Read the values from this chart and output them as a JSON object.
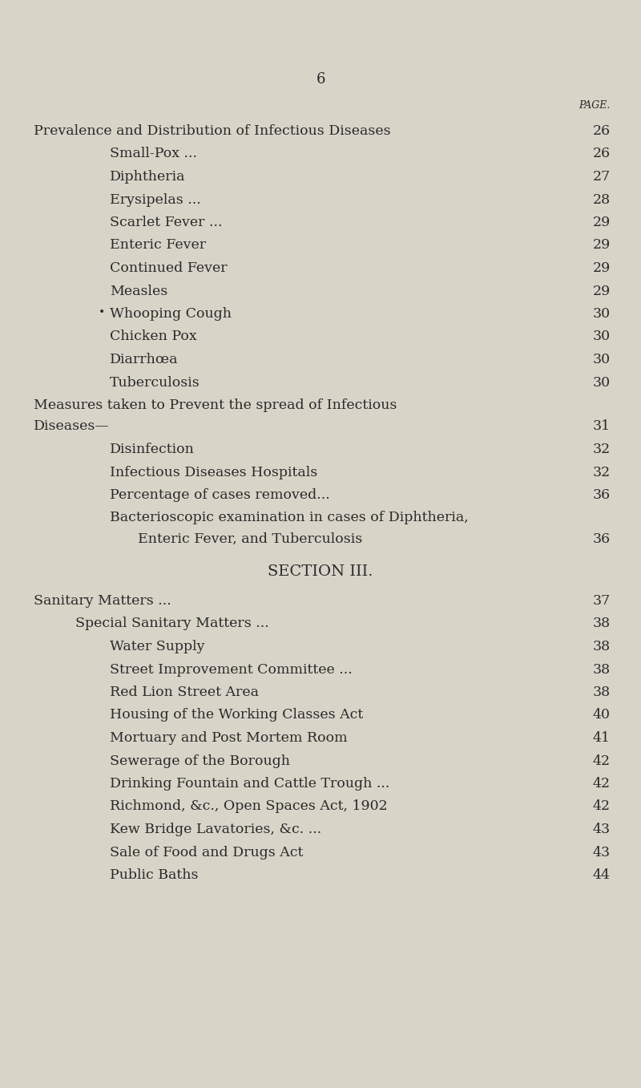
{
  "background_color": "#d8d4c8",
  "page_number": "6",
  "page_label": "PAGE.",
  "text_color": "#2a2a2a",
  "entries": [
    {
      "level": 0,
      "text": "Prevalence and Distribution of Infectious Diseases",
      "dots": "...",
      "page": "26",
      "italic_caps": true
    },
    {
      "level": 1,
      "text": "Small-Pox ...",
      "dots": "...          ...          ...          ...",
      "page": "26",
      "italic_caps": false
    },
    {
      "level": 1,
      "text": "Diphtheria",
      "dots": "...     ...     ...     ...     ...",
      "page": "27",
      "italic_caps": false
    },
    {
      "level": 1,
      "text": "Erysipelas ...",
      "dots": "...          ...          ...          ...",
      "page": "28",
      "italic_caps": false
    },
    {
      "level": 1,
      "text": "Scarlet Fever ...",
      "dots": "...          ....         ....          ...",
      "page": "29",
      "italic_caps": false
    },
    {
      "level": 1,
      "text": "Enteric Fever",
      "dots": "...     ...       ..     ...",
      "page": "29",
      "italic_caps": false
    },
    {
      "level": 1,
      "text": "Continued Fever",
      "dots": "...          ...          ...          ...",
      "page": "29",
      "italic_caps": false
    },
    {
      "level": 1,
      "text": "Measles",
      "dots": "...          ...          ...          ...          ...",
      "page": "29",
      "italic_caps": false
    },
    {
      "level": 1,
      "text": "Whooping Cough",
      "dots": "...          ...          ...          ...",
      "page": "30",
      "italic_caps": false,
      "bullet": true
    },
    {
      "level": 1,
      "text": "Chicken Pox",
      "dots": "...     ...          ...          ...",
      "page": "30",
      "italic_caps": false
    },
    {
      "level": 1,
      "text": "Diarrhœa",
      "dots": "...          ...          ...          ...   ...",
      "page": "30",
      "italic_caps": false
    },
    {
      "level": 1,
      "text": "Tuberculosis",
      "dots": "...          ...          ...          ...",
      "page": "30",
      "italic_caps": false
    },
    {
      "level": 0,
      "text": "Measures taken to Prevent the spread of Infectious",
      "dots": "",
      "page": "",
      "italic_caps": true,
      "no_page": true
    },
    {
      "level": 0,
      "text": "Diseases—",
      "dots": "...          ...          ...          ...          ...",
      "page": "31",
      "italic_caps": true
    },
    {
      "level": 1,
      "text": "Disinfection",
      "dots": "...          ...          ...          ...",
      "page": "32",
      "italic_caps": false
    },
    {
      "level": 1,
      "text": "Infectious Diseases Hospitals",
      "dots": "...          ...          ...",
      "page": "32",
      "italic_caps": false
    },
    {
      "level": 1,
      "text": "Percentage of cases removed...",
      "dots": "..          ...",
      "page": "36",
      "italic_caps": false
    },
    {
      "level": 1,
      "text": "Bacterioscopic examination in cases of Diphtheria,",
      "dots": "",
      "page": "",
      "italic_caps": false,
      "no_page": true
    },
    {
      "level": 2,
      "text": "Enteric Fever, and Tuberculosis",
      "dots": "...          ..",
      "page": "36",
      "italic_caps": false
    },
    {
      "level": -1,
      "text": "SECTION III.",
      "dots": "",
      "page": "",
      "italic_caps": false,
      "center": true,
      "section": true
    },
    {
      "level": 0,
      "text": "Sanitary Matters ...",
      "dots": "...          ...          ...          ...",
      "page": "37",
      "italic_caps": true
    },
    {
      "level": 0,
      "text": "Special Sanitary Matters ...",
      "dots": "...          ...          ...",
      "page": "38",
      "italic_caps": true,
      "indent1": true
    },
    {
      "level": 1,
      "text": "Water Supply",
      "dots": "...          ...       ..          ...",
      "page": "38",
      "italic_caps": false
    },
    {
      "level": 1,
      "text": "Street Improvement Committee ...",
      "dots": "...          ...          ...",
      "page": "38",
      "italic_caps": false
    },
    {
      "level": 1,
      "text": "Red Lion Street Area",
      "dots": "...          ...          ...",
      "page": "38",
      "italic_caps": false
    },
    {
      "level": 1,
      "text": "Housing of the Working Classes Act",
      "dots": "...          ...",
      "page": "40",
      "italic_caps": false
    },
    {
      "level": 1,
      "text": "Mortuary and Post Mortem Room",
      "dots": "...          ...",
      "page": "41",
      "italic_caps": false
    },
    {
      "level": 1,
      "text": "Sewerage of the Borough",
      "dots": "...          ...          ...",
      "page": "42",
      "italic_caps": false
    },
    {
      "level": 1,
      "text": "Drinking Fountain and Cattle Trough ...",
      "dots": "          ...",
      "page": "42",
      "italic_caps": false
    },
    {
      "level": 1,
      "text": "Richmond, &c., Open Spaces Act, 1902",
      "dots": "...          ...",
      "page": "42",
      "italic_caps": false
    },
    {
      "level": 1,
      "text": "Kew Bridge Lavatories, &c. ...",
      "dots": "...          ...",
      "page": "43",
      "italic_caps": false
    },
    {
      "level": 1,
      "text": "Sale of Food and Drugs Act",
      "dots": "...          ...          ...",
      "page": "43",
      "italic_caps": false
    },
    {
      "level": 1,
      "text": "Public Baths",
      "dots": "...          ...          ...          ...",
      "page": "44",
      "italic_caps": false
    }
  ],
  "fig_width": 8.0,
  "fig_height": 13.57,
  "dpi": 100
}
